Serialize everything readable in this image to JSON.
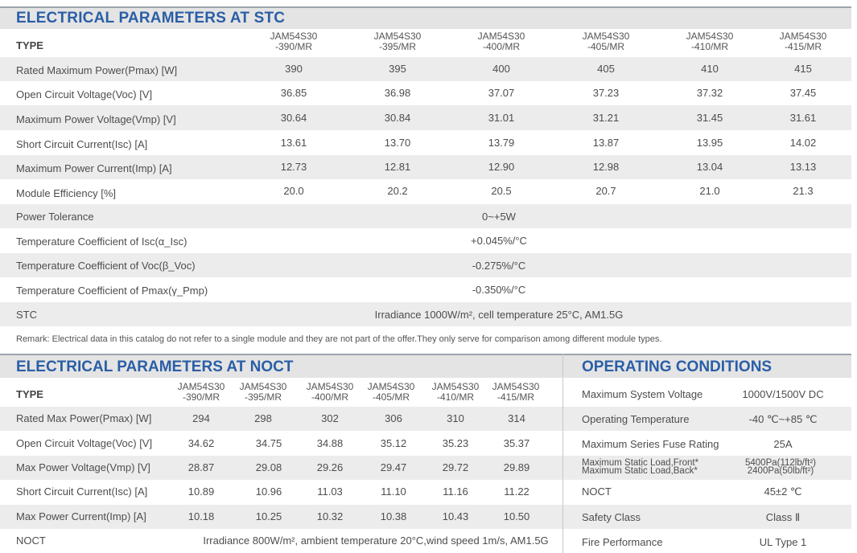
{
  "stc": {
    "title": "ELECTRICAL PARAMETERS AT STC",
    "type_label": "TYPE",
    "models": [
      [
        "JAM54S30",
        "-390/MR"
      ],
      [
        "JAM54S30",
        "-395/MR"
      ],
      [
        "JAM54S30",
        "-400/MR"
      ],
      [
        "JAM54S30",
        "-405/MR"
      ],
      [
        "JAM54S30",
        "-410/MR"
      ],
      [
        "JAM54S30",
        "-415/MR"
      ]
    ],
    "rows": [
      {
        "label": "Rated Maximum Power(Pmax) [W]",
        "values": [
          "390",
          "395",
          "400",
          "405",
          "410",
          "415"
        ]
      },
      {
        "label": "Open Circuit Voltage(Voc) [V]",
        "values": [
          "36.85",
          "36.98",
          "37.07",
          "37.23",
          "37.32",
          "37.45"
        ]
      },
      {
        "label": "Maximum Power Voltage(Vmp) [V]",
        "values": [
          "30.64",
          "30.84",
          "31.01",
          "31.21",
          "31.45",
          "31.61"
        ]
      },
      {
        "label": "Short Circuit Current(Isc) [A]",
        "values": [
          "13.61",
          "13.70",
          "13.79",
          "13.87",
          "13.95",
          "14.02"
        ]
      },
      {
        "label": "Maximum Power Current(Imp) [A]",
        "values": [
          "12.73",
          "12.81",
          "12.90",
          "12.98",
          "13.04",
          "13.13"
        ]
      },
      {
        "label": "Module Efficiency [%]",
        "values": [
          "20.0",
          "20.2",
          "20.5",
          "20.7",
          "21.0",
          "21.3"
        ]
      }
    ],
    "span_rows": [
      {
        "label": "Power Tolerance",
        "value": "0~+5W"
      },
      {
        "label": "Temperature Coefficient of Isc(α_Isc)",
        "value": "+0.045%/°C"
      },
      {
        "label": "Temperature Coefficient of Voc(β_Voc)",
        "value": "-0.275%/°C"
      },
      {
        "label": "Temperature Coefficient of Pmax(γ_Pmp)",
        "value": "-0.350%/°C"
      },
      {
        "label": "STC",
        "value": "Irradiance 1000W/m²,  cell temperature 25°C, AM1.5G"
      }
    ],
    "remark": "Remark: Electrical data in this catalog do not refer to a single module and they are not part of the offer.They only serve for comparison among different module types."
  },
  "noct": {
    "title": "ELECTRICAL PARAMETERS AT NOCT",
    "type_label": "TYPE",
    "models": [
      [
        "JAM54S30",
        "-390/MR"
      ],
      [
        "JAM54S30",
        "-395/MR"
      ],
      [
        "JAM54S30",
        "-400/MR"
      ],
      [
        "JAM54S30",
        "-405/MR"
      ],
      [
        "JAM54S30",
        "-410/MR"
      ],
      [
        "JAM54S30",
        "-415/MR"
      ]
    ],
    "rows": [
      {
        "label": "Rated Max Power(Pmax) [W]",
        "values": [
          "294",
          "298",
          "302",
          "306",
          "310",
          "314"
        ]
      },
      {
        "label": "Open Circuit Voltage(Voc) [V]",
        "values": [
          "34.62",
          "34.75",
          "34.88",
          "35.12",
          "35.23",
          "35.37"
        ]
      },
      {
        "label": "Max Power Voltage(Vmp) [V]",
        "values": [
          "28.87",
          "29.08",
          "29.26",
          "29.47",
          "29.72",
          "29.89"
        ]
      },
      {
        "label": "Short Circuit Current(Isc) [A]",
        "values": [
          "10.89",
          "10.96",
          "11.03",
          "11.10",
          "11.16",
          "11.22"
        ]
      },
      {
        "label": "Max Power Current(Imp) [A]",
        "values": [
          "10.18",
          "10.25",
          "10.32",
          "10.38",
          "10.43",
          "10.50"
        ]
      }
    ],
    "noct_label": "NOCT",
    "noct_value": "Irradiance 800W/m², ambient temperature 20°C,wind speed 1m/s, AM1.5G"
  },
  "operating": {
    "title": "OPERATING CONDITIONS",
    "rows": [
      {
        "label": "Maximum System Voltage",
        "value": "1000V/1500V DC"
      },
      {
        "label": "Operating Temperature",
        "value": "-40 ℃~+85 ℃"
      },
      {
        "label": "Maximum Series Fuse Rating",
        "value": "25A"
      },
      {
        "label": "Maximum Static Load,Front*",
        "label2": "Maximum Static Load,Back*",
        "value": "5400Pa(112lb/ft²)",
        "value2": "2400Pa(50lb/ft²)"
      },
      {
        "label": "NOCT",
        "value": "45±2 ℃"
      },
      {
        "label": "Safety Class",
        "value": "Class Ⅱ"
      },
      {
        "label": "Fire Performance",
        "value": "UL Type 1"
      }
    ]
  }
}
